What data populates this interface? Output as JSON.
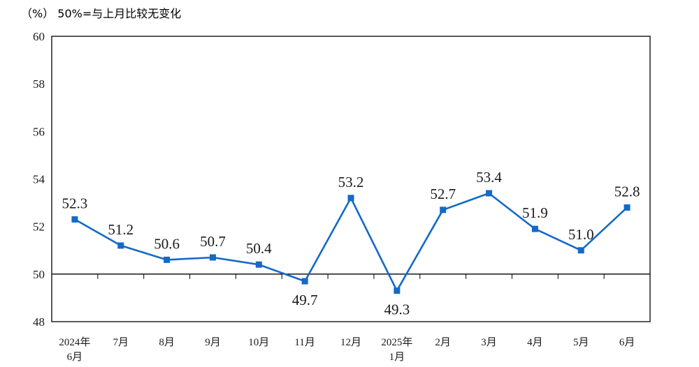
{
  "unit_note": "（%）  50%=与上月比较无变化",
  "colors": {
    "line": "#1469c9",
    "marker": "#1469c9",
    "frame": "#000000",
    "baseline": "#000000",
    "text": "#1a1a1a"
  },
  "chart_data": {
    "type": "line",
    "title": "",
    "xlabel": "",
    "ylabel": "",
    "ylim": [
      48,
      60
    ],
    "yticks": [
      48,
      50,
      52,
      54,
      56,
      58,
      60
    ],
    "reference_line": 50,
    "grid": false,
    "legend": "none",
    "categories": [
      [
        "2024年",
        "6月"
      ],
      [
        "7月"
      ],
      [
        "8月"
      ],
      [
        "9月"
      ],
      [
        "10月"
      ],
      [
        "11月"
      ],
      [
        "12月"
      ],
      [
        "2025年",
        "1月"
      ],
      [
        "2月"
      ],
      [
        "3月"
      ],
      [
        "4月"
      ],
      [
        "5月"
      ],
      [
        "6月"
      ]
    ],
    "series": [
      {
        "values": [
          52.3,
          51.2,
          50.6,
          50.7,
          50.4,
          49.7,
          53.2,
          49.3,
          52.7,
          53.4,
          51.9,
          51.0,
          52.8
        ],
        "labels": [
          "52.3",
          "51.2",
          "50.6",
          "50.7",
          "50.4",
          "49.7",
          "53.2",
          "49.3",
          "52.7",
          "53.4",
          "51.9",
          "51.0",
          "52.8"
        ],
        "marker": "square"
      }
    ]
  }
}
